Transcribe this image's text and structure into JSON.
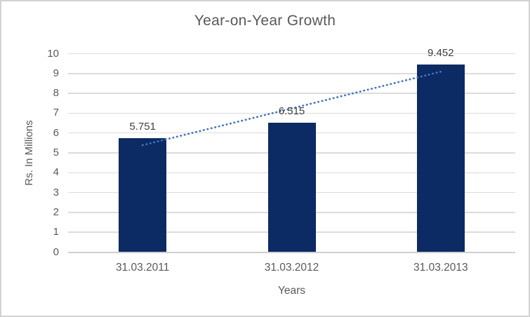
{
  "frame": {
    "background": "#ffffff",
    "border_color": "#d2d2d2"
  },
  "chart_data": {
    "type": "bar",
    "title": "Year-on-Year Growth",
    "categories": [
      "31.03.2011",
      "31.03.2012",
      "31.03.2013"
    ],
    "values": [
      5.751,
      6.515,
      9.452
    ],
    "data_labels": [
      "5.751",
      "6.515",
      "9.452"
    ],
    "xlabel": "Years",
    "ylabel": "Rs. In Millions",
    "ylim": [
      0,
      10
    ],
    "ytick_step": 1,
    "grid": true,
    "legend": "none",
    "bar_color": "#0c2a63",
    "trendline": {
      "type": "linear",
      "style": "dotted",
      "color": "#4472c4"
    },
    "styles": {
      "title_color": "#595959",
      "axis_text_color": "#595959",
      "data_label_color": "#404040",
      "gridline_color": "#dcdcdc",
      "axis_line_color": "#cfcfcf"
    }
  }
}
